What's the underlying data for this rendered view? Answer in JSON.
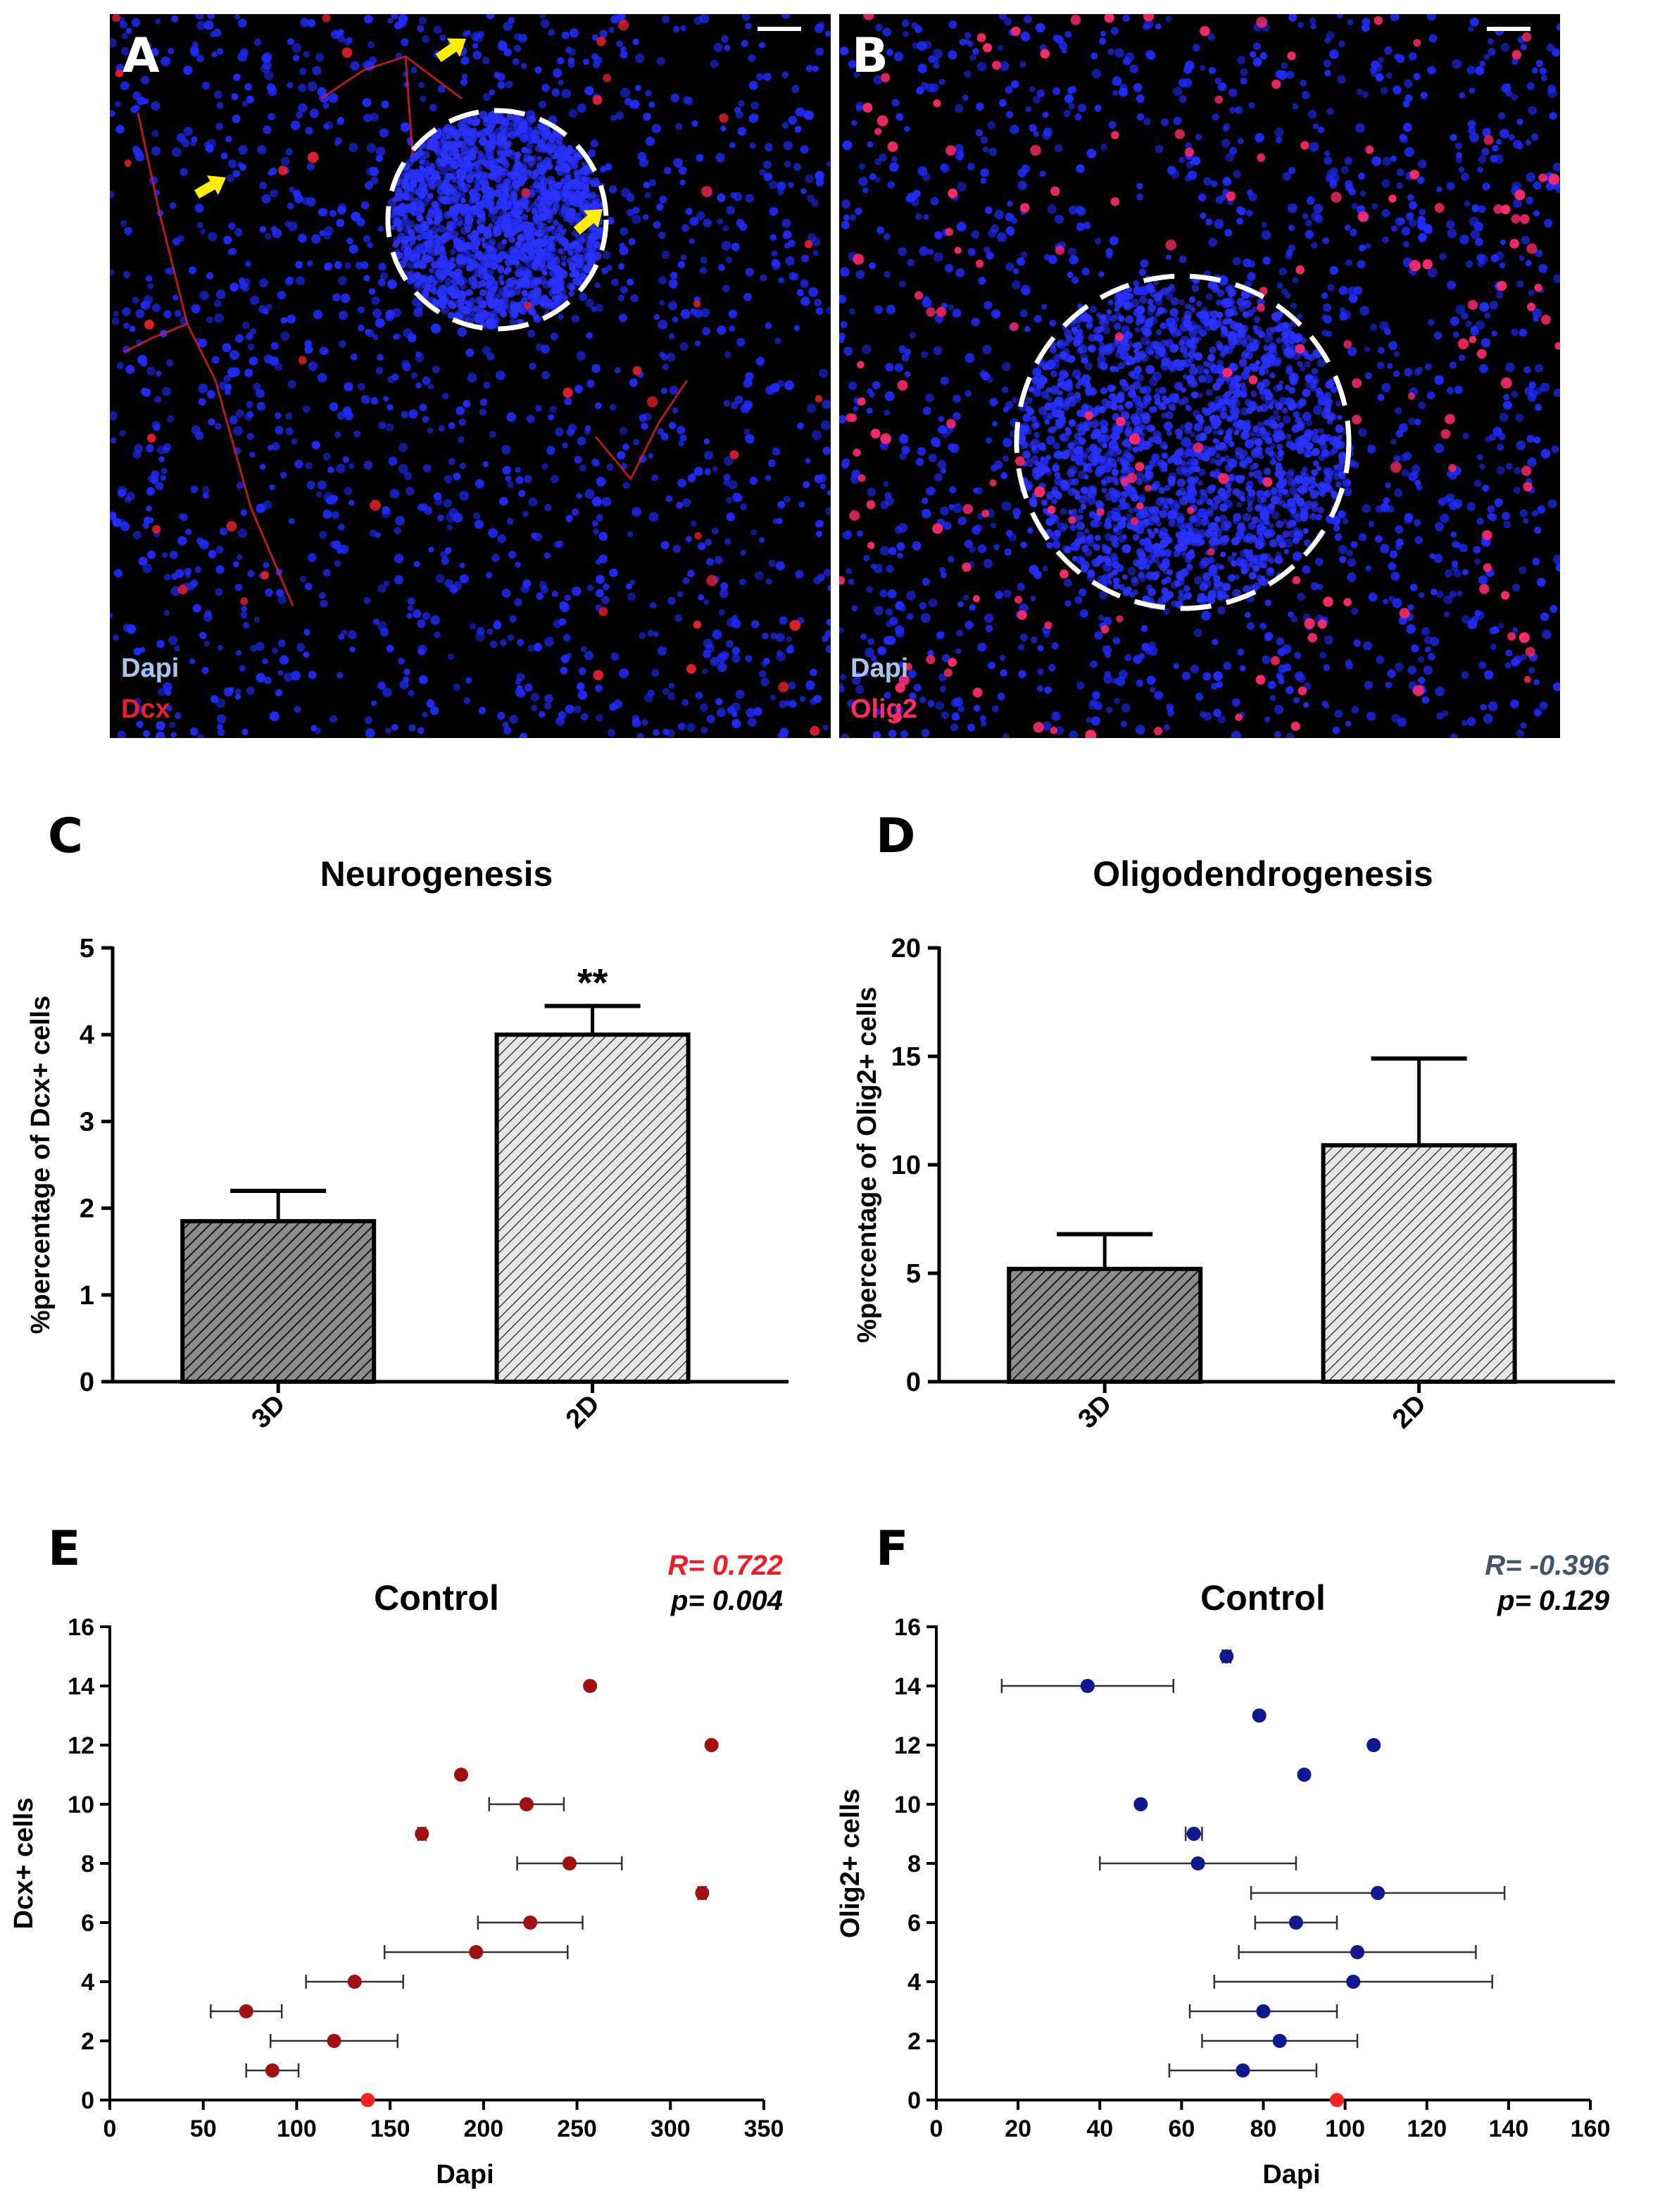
{
  "panels": {
    "A": {
      "label": "A",
      "stain1": "Dapi",
      "stain2": "Dcx",
      "stain2_color": "#e8202a"
    },
    "B": {
      "label": "B",
      "stain1": "Dapi",
      "stain2": "Olig2",
      "stain2_color": "#ff2a6a"
    },
    "C": {
      "label": "C"
    },
    "D": {
      "label": "D"
    },
    "E": {
      "label": "E"
    },
    "F": {
      "label": "F"
    }
  },
  "colors": {
    "dapi_label": "#a9c4ea",
    "dapi_nuclei": "#1f2bff",
    "scatter_E": "#a01010",
    "scatter_F": "#101890",
    "zero_point": "#ff2020",
    "r_E": "#ee1c24",
    "r_F": "#44546a"
  },
  "chart_data": [
    {
      "id": "C",
      "type": "bar",
      "title": "Neurogenesis",
      "ylabel": "%percentage of Dcx+ cells",
      "categories": [
        "3D",
        "2D"
      ],
      "values": [
        1.85,
        4.0
      ],
      "errors": [
        0.35,
        0.33
      ],
      "fills": [
        "dark-hatch",
        "light-hatch"
      ],
      "ylim": [
        0,
        5
      ],
      "yticks": [
        0,
        1,
        2,
        3,
        4,
        5
      ],
      "annotations": [
        {
          "category": "2D",
          "text": "**"
        }
      ]
    },
    {
      "id": "D",
      "type": "bar",
      "title": "Oligodendrogenesis",
      "ylabel": "%percentage of Olig2+ cells",
      "categories": [
        "3D",
        "2D"
      ],
      "values": [
        5.2,
        10.9
      ],
      "errors": [
        1.6,
        4.0
      ],
      "fills": [
        "dark-hatch",
        "light-hatch"
      ],
      "ylim": [
        0,
        20
      ],
      "yticks": [
        0,
        5,
        10,
        15,
        20
      ]
    },
    {
      "id": "E",
      "type": "scatter",
      "title": "Control",
      "xlabel": "Dapi",
      "ylabel": "Dcx+ cells",
      "xlim": [
        0,
        350
      ],
      "ylim": [
        0,
        16
      ],
      "xticks": [
        0,
        50,
        100,
        150,
        200,
        250,
        300,
        350
      ],
      "yticks": [
        0,
        2,
        4,
        6,
        8,
        10,
        12,
        14,
        16
      ],
      "stats": {
        "r": "R= 0.722",
        "p": "p= 0.004"
      },
      "points": [
        {
          "x": 138,
          "y": 0,
          "xerr": 0,
          "highlight": true
        },
        {
          "x": 87,
          "y": 1,
          "xerr": 14
        },
        {
          "x": 120,
          "y": 2,
          "xerr": 34
        },
        {
          "x": 73,
          "y": 3,
          "xerr": 19
        },
        {
          "x": 131,
          "y": 4,
          "xerr": 26
        },
        {
          "x": 196,
          "y": 5,
          "xerr": 49
        },
        {
          "x": 225,
          "y": 6,
          "xerr": 28
        },
        {
          "x": 317,
          "y": 7,
          "xerr": 2
        },
        {
          "x": 246,
          "y": 8,
          "xerr": 28
        },
        {
          "x": 167,
          "y": 9,
          "xerr": 2
        },
        {
          "x": 223,
          "y": 10,
          "xerr": 20
        },
        {
          "x": 188,
          "y": 11,
          "xerr": 0
        },
        {
          "x": 322,
          "y": 12,
          "xerr": 0
        },
        {
          "x": 257,
          "y": 14,
          "xerr": 0
        }
      ]
    },
    {
      "id": "F",
      "type": "scatter",
      "title": "Control",
      "xlabel": "Dapi",
      "ylabel": "Olig2+ cells",
      "xlim": [
        0,
        160
      ],
      "ylim": [
        0,
        16
      ],
      "xticks": [
        0,
        20,
        40,
        60,
        80,
        100,
        120,
        140,
        160
      ],
      "yticks": [
        0,
        2,
        4,
        6,
        8,
        10,
        12,
        14,
        16
      ],
      "stats": {
        "r": "R= -0.396",
        "p": "p= 0.129"
      },
      "points": [
        {
          "x": 98,
          "y": 0,
          "xerr": 0,
          "highlight": true
        },
        {
          "x": 75,
          "y": 1,
          "xerr": 18
        },
        {
          "x": 84,
          "y": 2,
          "xerr": 19
        },
        {
          "x": 80,
          "y": 3,
          "xerr": 18
        },
        {
          "x": 102,
          "y": 4,
          "xerr": 34
        },
        {
          "x": 103,
          "y": 5,
          "xerr": 29
        },
        {
          "x": 88,
          "y": 6,
          "xerr": 10
        },
        {
          "x": 108,
          "y": 7,
          "xerr": 31
        },
        {
          "x": 64,
          "y": 8,
          "xerr": 24
        },
        {
          "x": 63,
          "y": 9,
          "xerr": 2
        },
        {
          "x": 50,
          "y": 10,
          "xerr": 0
        },
        {
          "x": 90,
          "y": 11,
          "xerr": 0
        },
        {
          "x": 107,
          "y": 12,
          "xerr": 0
        },
        {
          "x": 79,
          "y": 13,
          "xerr": 0
        },
        {
          "x": 37,
          "y": 14,
          "xerr": 21
        },
        {
          "x": 71,
          "y": 15,
          "xerr": 1
        }
      ]
    }
  ]
}
